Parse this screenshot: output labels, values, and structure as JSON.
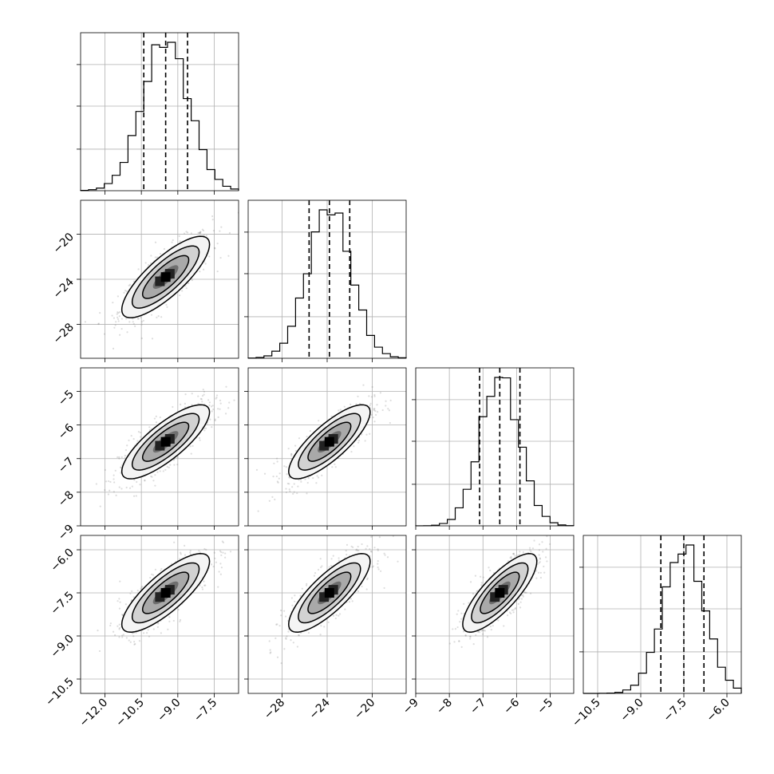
{
  "chart_data": {
    "type": "corner",
    "grid": true,
    "parameters": [
      {
        "index": 0,
        "range": [
          -13.0,
          -6.5
        ],
        "ticks": [
          -12.0,
          -10.5,
          -9.0,
          -7.5
        ],
        "tick_labels": [
          "−12.0",
          "−10.5",
          "−9.0",
          "−7.5"
        ],
        "mean": -9.5,
        "std": 0.95,
        "quantiles": [
          -10.4,
          -9.5,
          -8.6
        ]
      },
      {
        "index": 1,
        "range": [
          -31.0,
          -17.0
        ],
        "ticks": [
          -28,
          -24,
          -20
        ],
        "tick_labels": [
          "−28",
          "−24",
          "−20"
        ],
        "mean": -23.8,
        "std": 1.9,
        "quantiles": [
          -25.6,
          -23.8,
          -22.0
        ]
      },
      {
        "index": 2,
        "range": [
          -9.0,
          -4.3
        ],
        "ticks": [
          -9,
          -8,
          -7,
          -6,
          -5
        ],
        "tick_labels": [
          "−9",
          "−8",
          "−7",
          "−6",
          "−5"
        ],
        "mean": -6.5,
        "std": 0.58,
        "quantiles": [
          -7.1,
          -6.5,
          -5.9
        ]
      },
      {
        "index": 3,
        "range": [
          -11.0,
          -5.5
        ],
        "ticks": [
          -10.5,
          -9.0,
          -7.5,
          -6.0
        ],
        "tick_labels": [
          "−10.5",
          "−9.0",
          "−7.5",
          "−6.0"
        ],
        "mean": -7.5,
        "std": 0.72,
        "quantiles": [
          -8.3,
          -7.5,
          -6.8
        ]
      }
    ],
    "correlation": 0.8,
    "colors": {
      "points": "#777777",
      "lines": "#000000",
      "grid": "#b0b0b0"
    }
  }
}
